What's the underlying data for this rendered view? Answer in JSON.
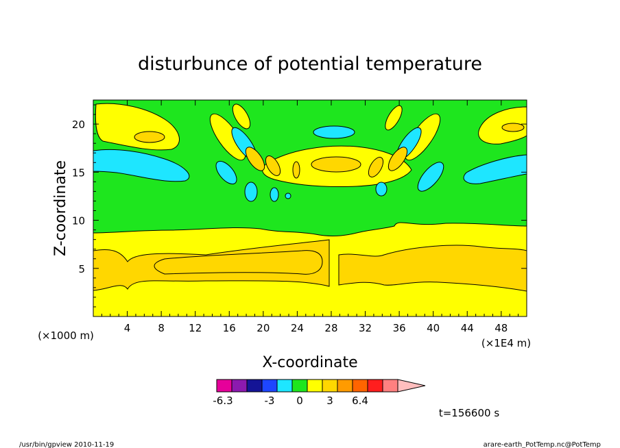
{
  "chart_data": {
    "type": "heatmap",
    "title": "disturbunce of potential temperature",
    "xlabel": "X-coordinate",
    "ylabel": "Z-coordinate",
    "x_unit_left": "(×1000 m)",
    "x_unit_right": "(×1E4 m)",
    "x_ticks": [
      "4",
      "8",
      "12",
      "16",
      "20",
      "24",
      "28",
      "32",
      "36",
      "40",
      "44",
      "48"
    ],
    "y_ticks": [
      "5",
      "10",
      "15",
      "20"
    ],
    "xlim": [
      0,
      51
    ],
    "ylim": [
      0,
      22.5
    ],
    "colorbar": {
      "labels": [
        "-6.3",
        "-3",
        "0",
        "3",
        "6.4"
      ],
      "label_positions": [
        0,
        3,
        5,
        7,
        9
      ],
      "colors": [
        "#e6009a",
        "#8c1aaf",
        "#141496",
        "#1e46ff",
        "#1ee6ff",
        "#1ee61e",
        "#ffff00",
        "#ffd700",
        "#ff9b00",
        "#ff6400",
        "#ff1e1e",
        "#ff8080",
        "#ffbebe"
      ]
    },
    "bands": [
      {
        "name": "yellow",
        "color": "#ffff00",
        "x": [
          0,
          51
        ],
        "z": [
          0,
          3
        ]
      },
      {
        "name": "orange",
        "color": "#ffd700",
        "x": [
          0,
          51
        ],
        "z": [
          3,
          7
        ]
      },
      {
        "name": "yellow",
        "color": "#ffff00",
        "x": [
          0,
          51
        ],
        "z": [
          7,
          9
        ]
      },
      {
        "name": "green",
        "color": "#1ee61e",
        "x": [
          0,
          51
        ],
        "z": [
          9,
          22.5
        ]
      }
    ],
    "time_label": "t=156600 s"
  },
  "footer": {
    "left": "/usr/bin/gpview   2010-11-19",
    "right": "arare-earth_PotTemp.nc@PotTemp"
  }
}
